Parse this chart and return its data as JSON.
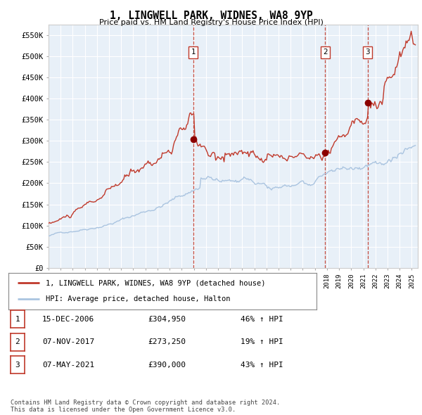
{
  "title": "1, LINGWELL PARK, WIDNES, WA8 9YP",
  "subtitle": "Price paid vs. HM Land Registry's House Price Index (HPI)",
  "ylabel_ticks": [
    "£0",
    "£50K",
    "£100K",
    "£150K",
    "£200K",
    "£250K",
    "£300K",
    "£350K",
    "£400K",
    "£450K",
    "£500K",
    "£550K"
  ],
  "ytick_values": [
    0,
    50000,
    100000,
    150000,
    200000,
    250000,
    300000,
    350000,
    400000,
    450000,
    500000,
    550000
  ],
  "xlim_start": 1995.0,
  "xlim_end": 2025.5,
  "ylim": [
    0,
    575000
  ],
  "sale_dates": [
    2006.96,
    2017.85,
    2021.35
  ],
  "sale_prices": [
    304950,
    273250,
    390000
  ],
  "sale_labels": [
    "1",
    "2",
    "3"
  ],
  "legend_line1": "1, LINGWELL PARK, WIDNES, WA8 9YP (detached house)",
  "legend_line2": "HPI: Average price, detached house, Halton",
  "table_data": [
    [
      "1",
      "15-DEC-2006",
      "£304,950",
      "46% ↑ HPI"
    ],
    [
      "2",
      "07-NOV-2017",
      "£273,250",
      "19% ↑ HPI"
    ],
    [
      "3",
      "07-MAY-2021",
      "£390,000",
      "43% ↑ HPI"
    ]
  ],
  "footer": "Contains HM Land Registry data © Crown copyright and database right 2024.\nThis data is licensed under the Open Government Licence v3.0.",
  "hpi_line_color": "#aac4e0",
  "price_line_color": "#c0392b",
  "sale_dot_color": "#8b0000",
  "bg_color": "#e8f0f8",
  "grid_color": "#ffffff",
  "vline_color": "#c0392b",
  "box_color": "#c0392b"
}
